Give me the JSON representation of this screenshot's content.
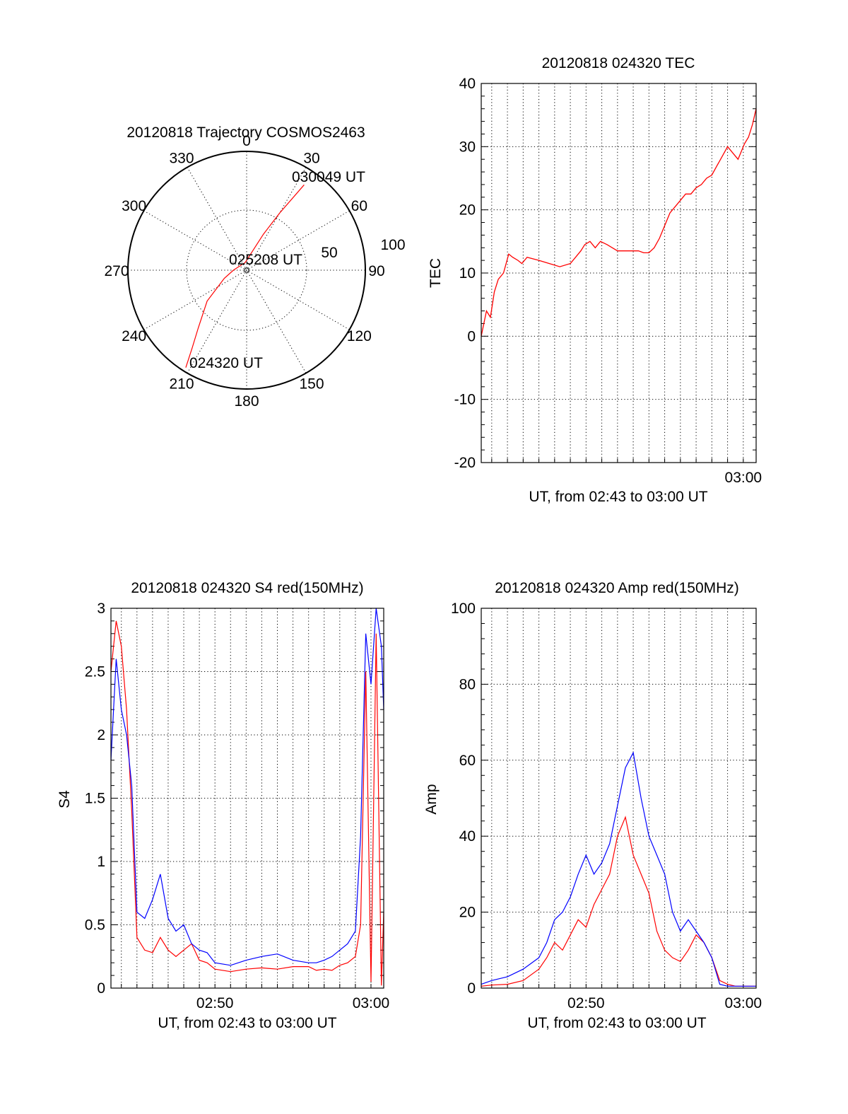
{
  "chart_data": [
    {
      "type": "polar",
      "title": "20120818 Trajectory COSMOS2463",
      "azimuth_labels": [
        "0",
        "30",
        "60",
        "90",
        "120",
        "150",
        "180",
        "210",
        "240",
        "270",
        "300",
        "330"
      ],
      "radial_labels": [
        "50",
        "100"
      ],
      "series": [
        {
          "color": "#ff0000",
          "points": [
            {
              "az": 212,
              "el": 3
            },
            {
              "az": 215,
              "el": 18
            },
            {
              "az": 220,
              "el": 33
            },
            {
              "az": 232,
              "el": 52
            },
            {
              "az": 250,
              "el": 72
            },
            {
              "az": 270,
              "el": 80
            },
            {
              "az": 350,
              "el": 84
            },
            {
              "az": 25,
              "el": 60
            },
            {
              "az": 30,
              "el": 40
            },
            {
              "az": 34,
              "el": 12
            }
          ]
        }
      ],
      "annotations": [
        "024320 UT",
        "025208 UT",
        "030049 UT"
      ]
    },
    {
      "type": "line",
      "title": "20120818 024320 TEC",
      "xlabel": "UT, from 02:43 to 03:00 UT",
      "ylabel": "TEC",
      "xlim": [
        "02:43:20",
        "03:00:49"
      ],
      "ylim": [
        -20,
        40
      ],
      "yticks": [
        -20,
        -10,
        0,
        10,
        20,
        30,
        40
      ],
      "xticks": [
        "03:00"
      ],
      "grid": true,
      "series": [
        {
          "color": "#ff0000",
          "x": [
            "02:43:20",
            "02:43:40",
            "02:43:55",
            "02:44:10",
            "02:44:25",
            "02:44:45",
            "02:45:05",
            "02:45:20",
            "02:45:40",
            "02:45:55",
            "02:46:15",
            "02:47:00",
            "02:47:40",
            "02:48:20",
            "02:49:00",
            "02:49:20",
            "02:49:40",
            "02:49:55",
            "02:50:15",
            "02:50:35",
            "02:50:55",
            "02:51:20",
            "02:52:00",
            "02:52:40",
            "02:53:20",
            "02:53:40",
            "02:54:00",
            "02:54:20",
            "02:54:40",
            "02:55:00",
            "02:55:20",
            "02:55:40",
            "02:56:00",
            "02:56:20",
            "02:56:40",
            "02:57:00",
            "02:57:20",
            "02:57:40",
            "02:58:00",
            "02:58:20",
            "02:58:40",
            "02:59:00",
            "02:59:20",
            "02:59:40",
            "02:59:55",
            "03:00:05",
            "03:00:20",
            "03:00:35",
            "03:00:49"
          ],
          "y": [
            0,
            4,
            3,
            7,
            9,
            10,
            13,
            12.5,
            12,
            11.5,
            12.5,
            12,
            11.5,
            11,
            11.5,
            12.5,
            13.5,
            14.5,
            15,
            14,
            15,
            14.5,
            13.5,
            13.5,
            13.5,
            13.2,
            13.2,
            14,
            15.5,
            17.5,
            19.5,
            20.5,
            21.5,
            22.5,
            22.5,
            23.5,
            24,
            25,
            25.5,
            27,
            28.5,
            30,
            29,
            28,
            29.5,
            30.5,
            31.5,
            33.5,
            36
          ]
        }
      ]
    },
    {
      "type": "line",
      "title": "20120818 024320 S4 red(150MHz)",
      "xlabel": "UT, from 02:43 to 03:00 UT",
      "ylabel": "S4",
      "xlim": [
        "02:43:20",
        "03:00:49"
      ],
      "ylim": [
        0,
        3
      ],
      "yticks": [
        0,
        0.5,
        1,
        1.5,
        2,
        2.5,
        3
      ],
      "yticklabels": [
        "0",
        "0.5",
        "1",
        "1.5",
        "2",
        "2.5",
        "3"
      ],
      "xticks": [
        "02:50",
        "03:00"
      ],
      "grid": true,
      "series": [
        {
          "color": "#ff0000",
          "x": [
            "02:43:20",
            "02:43:40",
            "02:44:00",
            "02:44:20",
            "02:44:40",
            "02:45:00",
            "02:45:30",
            "02:46:00",
            "02:46:30",
            "02:47:00",
            "02:47:30",
            "02:48:00",
            "02:48:30",
            "02:49:00",
            "02:49:30",
            "02:50:00",
            "02:51:00",
            "02:52:00",
            "02:53:00",
            "02:54:00",
            "02:55:00",
            "02:56:00",
            "02:56:30",
            "02:57:00",
            "02:57:30",
            "02:58:00",
            "02:58:30",
            "02:59:00",
            "02:59:20",
            "02:59:40",
            "03:00:00",
            "03:00:20",
            "03:00:40",
            "03:00:49"
          ],
          "y": [
            2.5,
            2.9,
            2.7,
            2.2,
            1.4,
            0.4,
            0.3,
            0.28,
            0.4,
            0.3,
            0.25,
            0.3,
            0.35,
            0.22,
            0.2,
            0.15,
            0.13,
            0.15,
            0.16,
            0.15,
            0.17,
            0.17,
            0.14,
            0.15,
            0.14,
            0.18,
            0.2,
            0.25,
            0.5,
            2.5,
            0.05,
            2.8,
            0.02,
            0.6
          ]
        },
        {
          "color": "#0000ff",
          "x": [
            "02:43:20",
            "02:43:40",
            "02:44:00",
            "02:44:20",
            "02:44:40",
            "02:45:00",
            "02:45:30",
            "02:46:00",
            "02:46:30",
            "02:47:00",
            "02:47:30",
            "02:48:00",
            "02:48:30",
            "02:49:00",
            "02:49:30",
            "02:50:00",
            "02:51:00",
            "02:52:00",
            "02:53:00",
            "02:54:00",
            "02:55:00",
            "02:56:00",
            "02:56:30",
            "02:57:00",
            "02:57:30",
            "02:58:00",
            "02:58:30",
            "02:59:00",
            "02:59:20",
            "02:59:40",
            "03:00:00",
            "03:00:20",
            "03:00:40",
            "03:00:49"
          ],
          "y": [
            1.8,
            2.6,
            2.2,
            2.0,
            1.6,
            0.6,
            0.55,
            0.7,
            0.9,
            0.55,
            0.45,
            0.5,
            0.35,
            0.3,
            0.28,
            0.2,
            0.18,
            0.22,
            0.25,
            0.27,
            0.22,
            0.2,
            0.2,
            0.22,
            0.25,
            0.3,
            0.35,
            0.45,
            1.2,
            2.8,
            2.4,
            3.0,
            2.7,
            2.2
          ]
        }
      ]
    },
    {
      "type": "line",
      "title": "20120818 024320 Amp red(150MHz)",
      "xlabel": "UT, from 02:43 to 03:00 UT",
      "ylabel": "Amp",
      "xlim": [
        "02:43:20",
        "03:00:49"
      ],
      "ylim": [
        0,
        100
      ],
      "yticks": [
        0,
        20,
        40,
        60,
        80,
        100
      ],
      "xticks": [
        "02:50",
        "03:00"
      ],
      "grid": true,
      "series": [
        {
          "color": "#ff0000",
          "x": [
            "02:43:20",
            "02:44:00",
            "02:45:00",
            "02:46:00",
            "02:47:00",
            "02:47:30",
            "02:48:00",
            "02:48:30",
            "02:49:00",
            "02:49:30",
            "02:50:00",
            "02:50:30",
            "02:51:00",
            "02:51:30",
            "02:52:00",
            "02:52:30",
            "02:53:00",
            "02:53:30",
            "02:54:00",
            "02:54:30",
            "02:55:00",
            "02:55:30",
            "02:56:00",
            "02:56:30",
            "02:57:00",
            "02:57:30",
            "02:58:00",
            "02:58:30",
            "02:59:00",
            "02:59:30",
            "03:00:00",
            "03:00:49"
          ],
          "y": [
            0.5,
            0.8,
            1,
            2,
            5,
            8,
            12,
            10,
            14,
            18,
            16,
            22,
            26,
            30,
            40,
            45,
            35,
            30,
            25,
            15,
            10,
            8,
            7,
            10,
            14,
            12,
            8,
            2,
            1,
            0.5,
            0.5,
            0.5
          ]
        },
        {
          "color": "#0000ff",
          "x": [
            "02:43:20",
            "02:44:00",
            "02:45:00",
            "02:46:00",
            "02:47:00",
            "02:47:30",
            "02:48:00",
            "02:48:30",
            "02:49:00",
            "02:49:30",
            "02:50:00",
            "02:50:30",
            "02:51:00",
            "02:51:30",
            "02:52:00",
            "02:52:30",
            "02:53:00",
            "02:53:30",
            "02:54:00",
            "02:54:30",
            "02:55:00",
            "02:55:30",
            "02:56:00",
            "02:56:30",
            "02:57:00",
            "02:57:30",
            "02:58:00",
            "02:58:30",
            "02:59:00",
            "02:59:30",
            "03:00:00",
            "03:00:49"
          ],
          "y": [
            1,
            2,
            3,
            5,
            8,
            12,
            18,
            20,
            24,
            30,
            35,
            30,
            33,
            38,
            48,
            58,
            62,
            50,
            40,
            35,
            30,
            20,
            15,
            18,
            15,
            12,
            8,
            1,
            0.5,
            0.5,
            0.5,
            0.5
          ]
        }
      ]
    }
  ]
}
